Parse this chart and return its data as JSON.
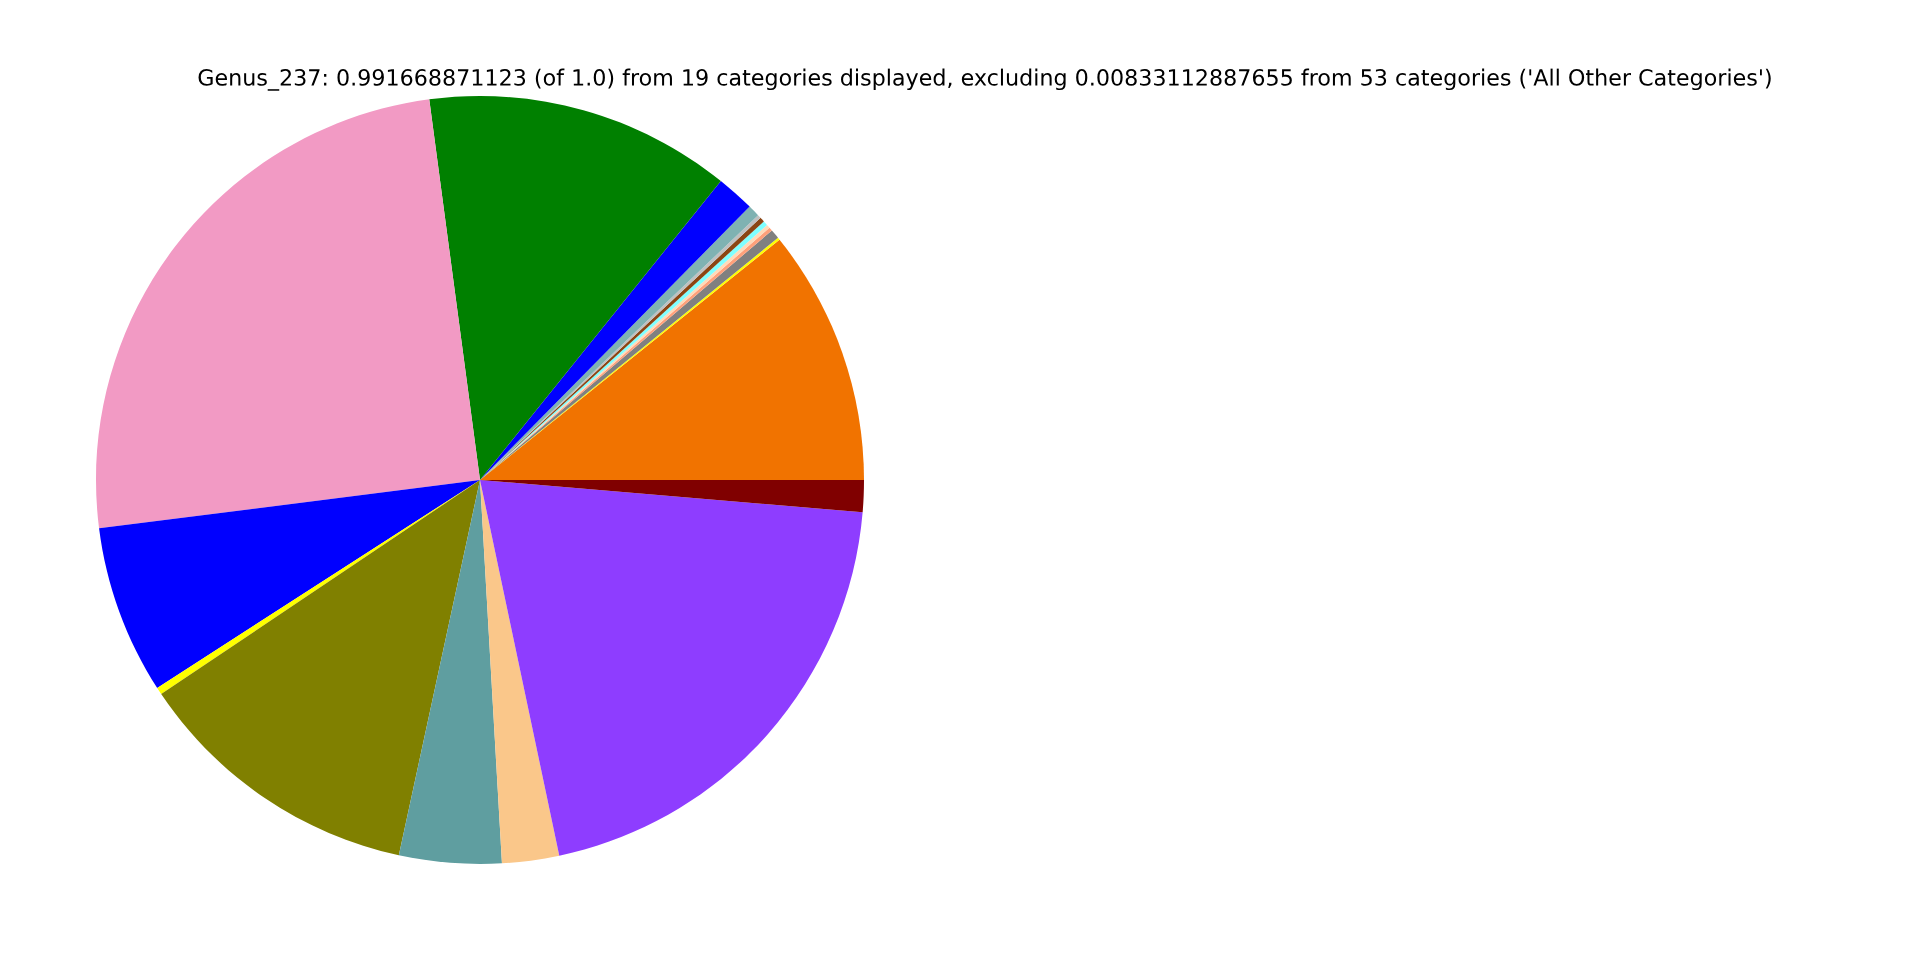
{
  "chart_data": {
    "type": "pie",
    "title": "Genus_237: 0.991668871123 (of 1.0) from 19 categories displayed, excluding 0.00833112887655 from 53 categories ('All Other Categories')",
    "categories": [
      null,
      null,
      null,
      null,
      null,
      null,
      null,
      null,
      null,
      null,
      null,
      null,
      null,
      null,
      null,
      null,
      null,
      null,
      null
    ],
    "values": [
      10.76,
      0.1,
      0.4,
      0.15,
      0.15,
      0.2,
      0.2,
      0.15,
      0.5,
      1.6,
      12.9,
      24.9,
      7.1,
      0.3,
      12.2,
      4.3,
      2.4,
      20.35,
      1.34
    ],
    "colors": [
      "#f17300",
      "#ffff00",
      "#808080",
      "#ffa07a",
      "#ffdab9",
      "#7fffff",
      "#8b4513",
      "#c0c0c0",
      "#7fb2b2",
      "#0000ff",
      "#008000",
      "#f29ac4",
      "#0000ff",
      "#ffff00",
      "#808000",
      "#5f9ea0",
      "#fac78a",
      "#8e3dff",
      "#800000"
    ]
  }
}
